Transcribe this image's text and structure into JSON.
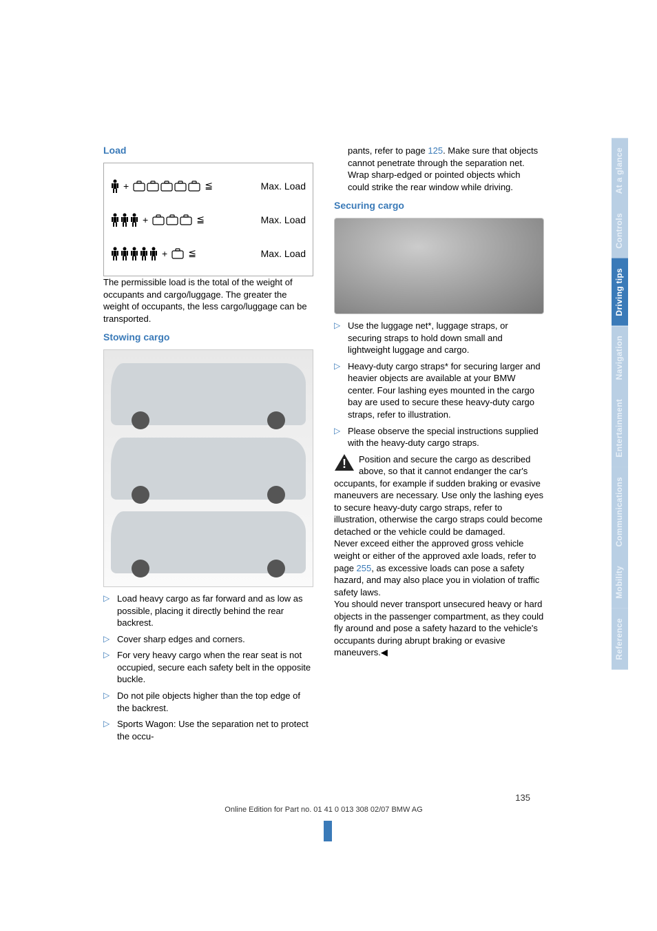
{
  "colors": {
    "heading_blue": "#3a7ab8",
    "tab_faded_bg": "#b9cfe4",
    "tab_faded_text": "#e8f0f8",
    "tab_active_bg": "#3a7ab8",
    "body_text": "#000000",
    "link": "#3a7ab8"
  },
  "left": {
    "load_heading": "Load",
    "load_figure": {
      "rows": [
        {
          "persons": 1,
          "bags": 5,
          "op": "≦",
          "label": "Max. Load"
        },
        {
          "persons": 3,
          "bags": 3,
          "op": "≦",
          "label": "Max. Load"
        },
        {
          "persons": 5,
          "bags": 1,
          "op": "≦",
          "label": "Max. Load"
        }
      ]
    },
    "load_para": "The permissible load is the total of the weight of occupants and cargo/luggage. The greater the weight of occupants, the less cargo/luggage can be transported.",
    "stowing_heading": "Stowing cargo",
    "bullets": [
      "Load heavy cargo as far forward and as low as possible, placing it directly behind the rear backrest.",
      "Cover sharp edges and corners.",
      "For very heavy cargo when the rear seat is not occupied, secure each safety belt in the opposite buckle.",
      "Do not pile objects higher than the top edge of the backrest.",
      "Sports Wagon:\nUse the separation net to protect the occu-"
    ]
  },
  "right": {
    "cont_para_a": "pants, refer to page ",
    "cont_link": "125",
    "cont_para_b": ". Make sure that objects cannot penetrate through the separation net.",
    "cont_para_c": "Wrap sharp-edged or pointed objects which could strike the rear window while driving.",
    "securing_heading": "Securing cargo",
    "bullets": [
      "Use the luggage net*, luggage straps, or securing straps to hold down small and lightweight luggage and cargo.",
      "Heavy-duty cargo straps* for securing larger and heavier objects are available at your BMW center. Four lashing eyes mounted in the cargo bay are used to secure these heavy-duty cargo straps, refer to illustration.",
      "Please observe the special instructions supplied with the heavy-duty cargo straps."
    ],
    "warn_a": "Position and secure the cargo as described above, so that it cannot endanger the car's occupants, for example if sudden braking or evasive maneuvers are necessary.",
    "warn_b": "Use only the lashing eyes to secure heavy-duty cargo straps, refer to illustration, otherwise the cargo straps could become detached or the vehicle could be damaged.",
    "warn_c_a": "Never exceed either the approved gross vehicle weight or either of the approved axle loads, refer to page ",
    "warn_c_link": "255",
    "warn_c_b": ", as excessive loads can pose a safety hazard, and may also place you in violation of traffic safety laws.",
    "warn_d": "You should never transport unsecured heavy or hard objects in the passenger compartment, as they could fly around and pose a safety hazard to the vehicle's occupants during abrupt braking or evasive maneuvers.◀"
  },
  "tabs": [
    {
      "label": "At a glance",
      "active": false
    },
    {
      "label": "Controls",
      "active": false
    },
    {
      "label": "Driving tips",
      "active": true
    },
    {
      "label": "Navigation",
      "active": false
    },
    {
      "label": "Entertainment",
      "active": false
    },
    {
      "label": "Communications",
      "active": false
    },
    {
      "label": "Mobility",
      "active": false
    },
    {
      "label": "Reference",
      "active": false
    }
  ],
  "footer": {
    "page": "135",
    "line": "Online Edition for Part no. 01 41 0 013 308 02/07 BMW AG"
  }
}
